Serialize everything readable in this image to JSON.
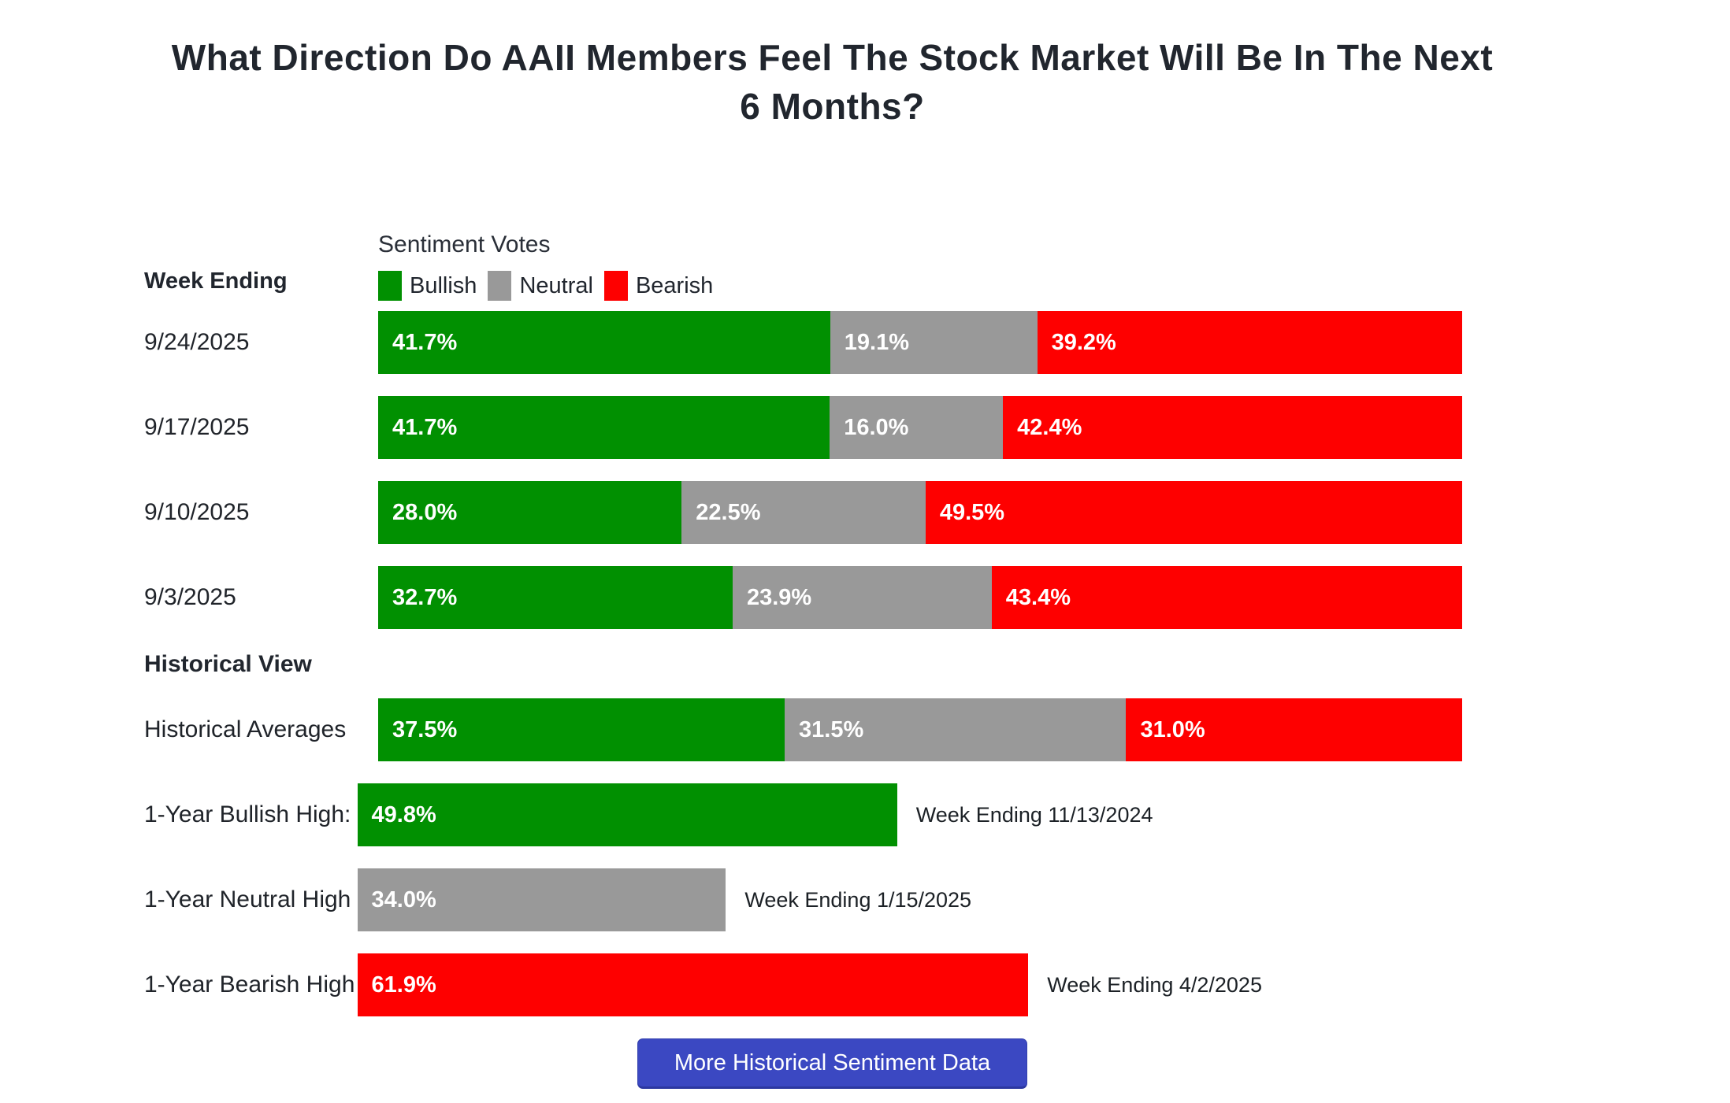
{
  "title": "What Direction Do AAII Members Feel The Stock Market Will Be In The Next\n6 Months?",
  "left_header": "Week Ending",
  "legend_title": "Sentiment Votes",
  "legend": [
    {
      "label": "Bullish"
    },
    {
      "label": "Neutral"
    },
    {
      "label": "Bearish"
    }
  ],
  "section_historical": "Historical View",
  "labels": {
    "historical_averages": "Historical Averages",
    "bullish_high": "1-Year Bullish High:",
    "neutral_high": "1-Year Neutral High",
    "bearish_high": "1-Year Bearish High"
  },
  "button": {
    "label": "More Historical Sentiment Data"
  },
  "colors": {
    "button": "#3b48c2",
    "title_text": "#21262e",
    "bar_value_text": "#ffffff"
  },
  "chart_data": {
    "type": "bar",
    "subtype": "horizontal-stacked",
    "title": "What Direction Do AAII Members Feel The Stock Market Will Be In The Next 6 Months?",
    "xlim": [
      0,
      100
    ],
    "unit": "%",
    "grid": false,
    "legend_position": "top",
    "categories": [
      "9/24/2025",
      "9/17/2025",
      "9/10/2025",
      "9/3/2025"
    ],
    "series": [
      {
        "name": "Bullish",
        "color": "#019001",
        "values": [
          41.7,
          41.7,
          28.0,
          32.7
        ]
      },
      {
        "name": "Neutral",
        "color": "#999999",
        "values": [
          19.1,
          16.0,
          22.5,
          23.9
        ]
      },
      {
        "name": "Bearish",
        "color": "#fe0000",
        "values": [
          39.2,
          42.4,
          49.5,
          43.4
        ]
      }
    ],
    "historical": {
      "averages": {
        "bullish": 37.5,
        "neutral": 31.5,
        "bearish": 31.0
      },
      "one_year_bullish_high": {
        "value": 49.8,
        "annotation": "Week Ending 11/13/2024"
      },
      "one_year_neutral_high": {
        "value": 34.0,
        "annotation": "Week Ending 1/15/2025"
      },
      "one_year_bearish_high": {
        "value": 61.9,
        "annotation": "Week Ending 4/2/2025"
      }
    }
  }
}
